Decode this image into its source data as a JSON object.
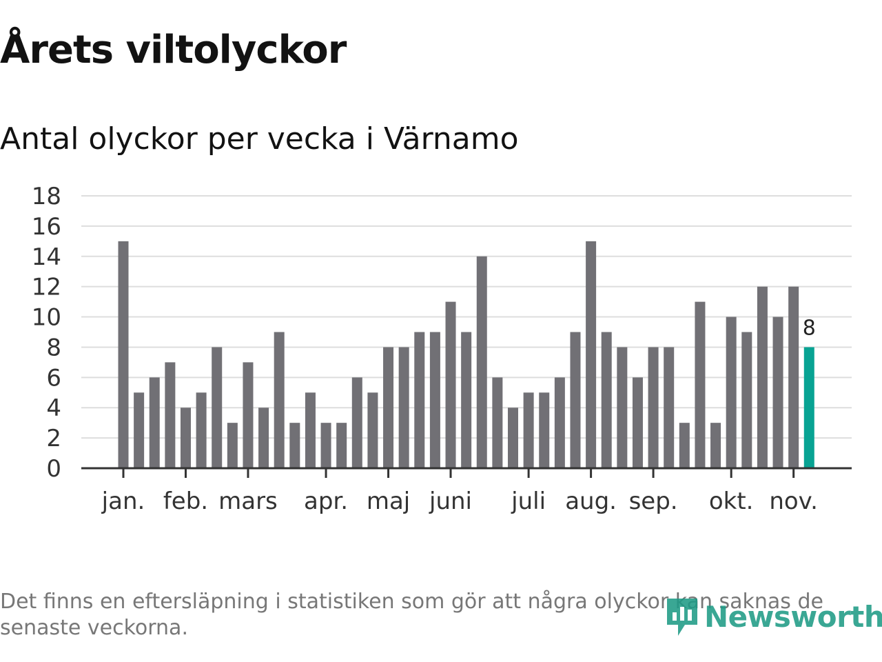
{
  "title": "Årets viltolyckor",
  "subtitle": "Antal olyckor per vecka i Värnamo",
  "footnote": "Det finns en eftersläpning i statistiken som gör att några olyckor kan saknas de senaste veckorna.",
  "logo": {
    "text": "Newsworthy",
    "icon": "newsworthy-logo-icon"
  },
  "colors": {
    "bar": "#717075",
    "highlight": "#08a393",
    "grid": "#dddddd",
    "axis": "#333333"
  },
  "chart_data": {
    "type": "bar",
    "title": "Årets viltolyckor",
    "subtitle": "Antal olyckor per vecka i Värnamo",
    "xlabel": "",
    "ylabel": "",
    "ylim": [
      0,
      18
    ],
    "yticks": [
      "0",
      "2",
      "4",
      "6",
      "8",
      "10",
      "12",
      "14",
      "16",
      "18"
    ],
    "grid": true,
    "values": [
      15,
      5,
      6,
      7,
      4,
      5,
      8,
      3,
      7,
      4,
      9,
      3,
      5,
      3,
      3,
      6,
      5,
      8,
      8,
      9,
      9,
      11,
      9,
      14,
      6,
      4,
      5,
      5,
      6,
      9,
      15,
      9,
      8,
      6,
      8,
      8,
      3,
      11,
      3,
      10,
      9,
      12,
      10,
      12,
      8
    ],
    "highlight_index": 44,
    "highlight_label": "8",
    "months": [
      {
        "label": "jan.",
        "bar_index": 0
      },
      {
        "label": "feb.",
        "bar_index": 4
      },
      {
        "label": "mars",
        "bar_index": 8
      },
      {
        "label": "apr.",
        "bar_index": 13
      },
      {
        "label": "maj",
        "bar_index": 17
      },
      {
        "label": "juni",
        "bar_index": 21
      },
      {
        "label": "juli",
        "bar_index": 26
      },
      {
        "label": "aug.",
        "bar_index": 30
      },
      {
        "label": "sep.",
        "bar_index": 34
      },
      {
        "label": "okt.",
        "bar_index": 39
      },
      {
        "label": "nov.",
        "bar_index": 43
      }
    ]
  }
}
